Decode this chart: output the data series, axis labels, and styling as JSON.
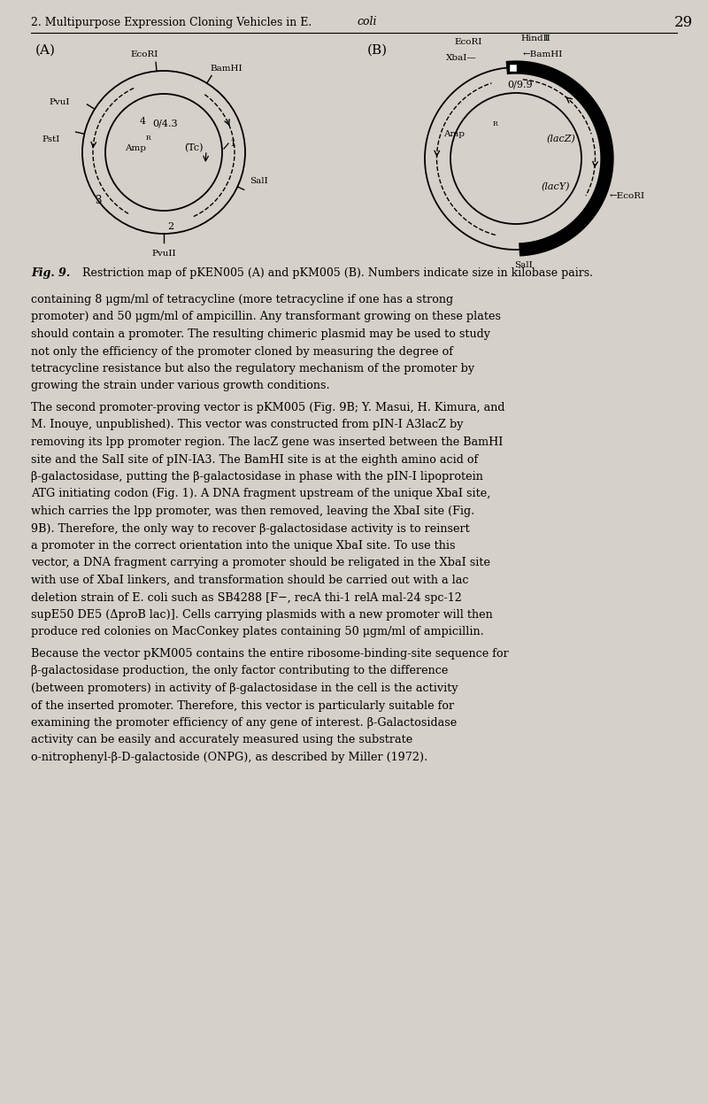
{
  "bg_color": "#d5d0c9",
  "header_text": "2. Multipurpose Expression Cloning Vehicles in E. coli",
  "page_number": "29",
  "fig_caption_bold": "Fig. 9.",
  "fig_caption_rest": " Restriction map of pKEN005 (A) and pKM005 (B). Numbers indicate size in kilobase pairs.",
  "paragraph1": "containing 8 μgm/ml of tetracycline (more tetracycline if one has a strong promoter) and 50 μgm/ml of ampicillin. Any transformant growing on these plates should contain a promoter. The resulting chimeric plasmid may be used to study not only the efficiency of the promoter cloned by measuring the degree of tetracycline resistance but also the regulatory mechanism of the promoter by growing the strain under various growth conditions.",
  "paragraph2": "    The second promoter-proving vector is pKM005 (Fig. 9B; Y. Masui, H. Kimura, and M. Inouye, unpublished). This vector was constructed from pIN-I A3lacZ by removing its lpp promoter region. The lacZ gene was inserted between the BamHI site and the SalI site of pIN-IA3. The BamHI site is at the eighth amino acid of β-galactosidase, putting the β-galactosidase in phase with the pIN-I lipoprotein ATG initiating codon (Fig. 1). A DNA fragment upstream of the unique XbaI site, which carries the lpp promoter, was then removed, leaving the XbaI site (Fig. 9B). Therefore, the only way to recover β-galactosidase activity is to reinsert a promoter in the correct orientation into the unique XbaI site. To use this vector, a DNA fragment carrying a promoter should be religated in the XbaI site with use of XbaI linkers, and transformation should be carried out with a lac deletion strain of E. coli such as SB4288 [F−, recA thi-1 relA mal-24 spc-12 supE50 DE5 (ΔproB lac)]. Cells carrying plasmids with a new promoter will then produce red colonies on MacConkey plates containing 50 μgm/ml of ampicillin.",
  "paragraph3": "    Because the vector pKM005 contains the entire ribosome-binding-site sequence for β-galactosidase production, the only factor contributing to the difference (between promoters) in activity of β-galactosidase in the cell is the activity of the inserted promoter. Therefore, this vector is particularly suitable for examining the promoter efficiency of any gene of interest. β-Galactosidase activity can be easily and accurately measured using the substrate o-nitrophenyl-β-D-galactoside (ONPG), as described by Miller (1972)."
}
